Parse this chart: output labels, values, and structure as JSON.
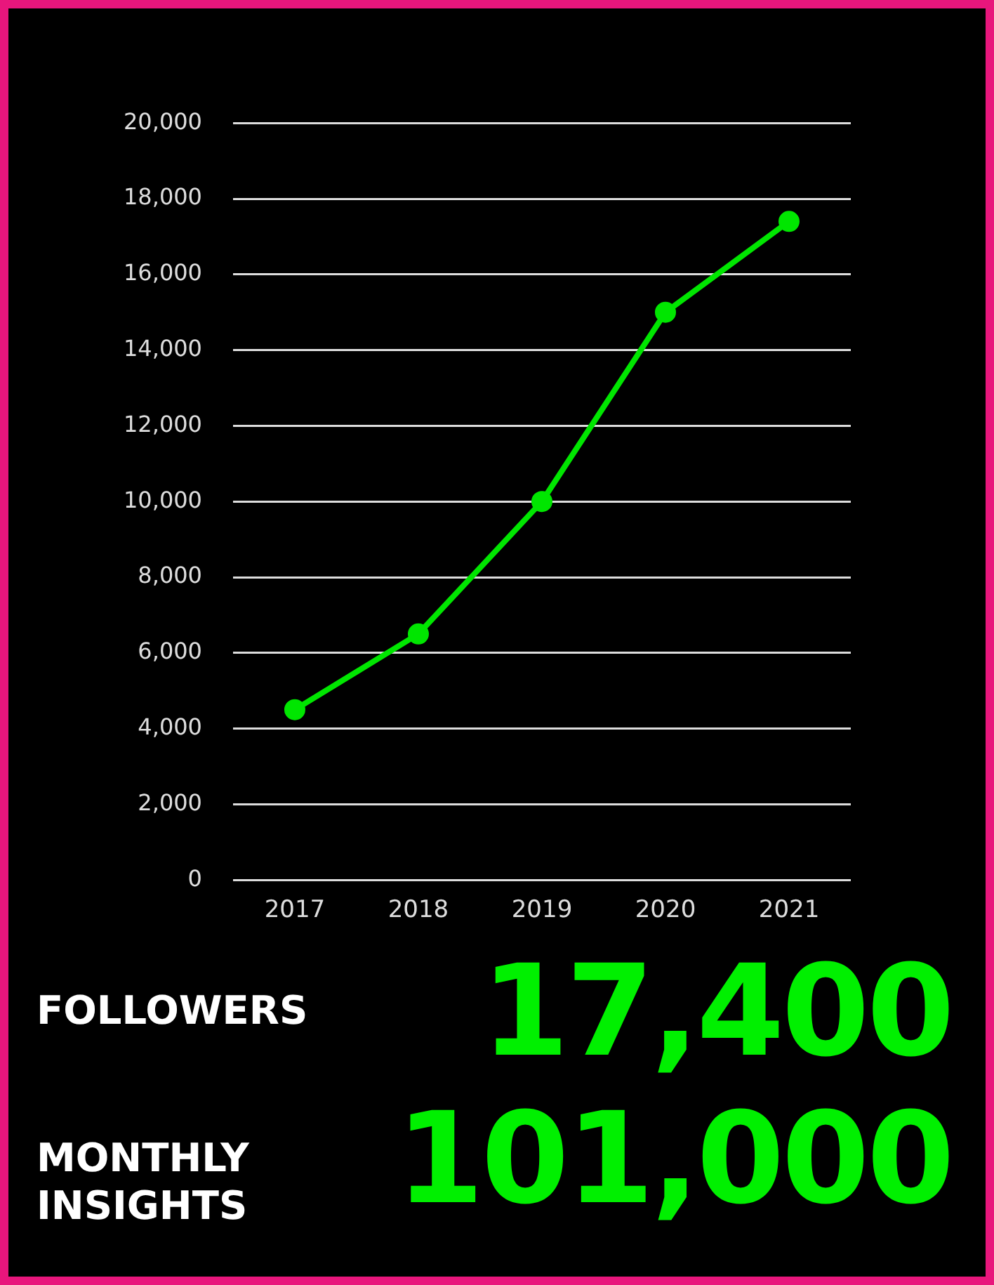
{
  "chart_data": {
    "type": "line",
    "categories": [
      "2017",
      "2018",
      "2019",
      "2020",
      "2021"
    ],
    "series": [
      {
        "color": "#00e600",
        "values": [
          4500,
          6500,
          10000,
          15000,
          17400
        ]
      }
    ],
    "ylim": [
      0,
      20000
    ],
    "yticks": [
      0,
      {
        "value": 2000,
        "label": "2,000"
      },
      {
        "value": 4000,
        "label": "4,000"
      },
      {
        "value": 6000,
        "label": "6,000"
      },
      {
        "value": 8000,
        "label": "8,000"
      },
      {
        "value": 10000,
        "label": "10,000"
      },
      {
        "value": 12000,
        "label": "12,000"
      },
      {
        "value": 14000,
        "label": "14,000"
      },
      {
        "value": 16000,
        "label": "16,000"
      },
      {
        "value": 18000,
        "label": "18,000"
      },
      {
        "value": 20000,
        "label": "20,000"
      }
    ],
    "grid": "y",
    "legend": false,
    "marker": "circle",
    "line_style": "solid",
    "annotations": [
      "FOLLOWERS",
      "17,400",
      "MONTHLY INSIGHTS",
      "101,000"
    ]
  }
}
